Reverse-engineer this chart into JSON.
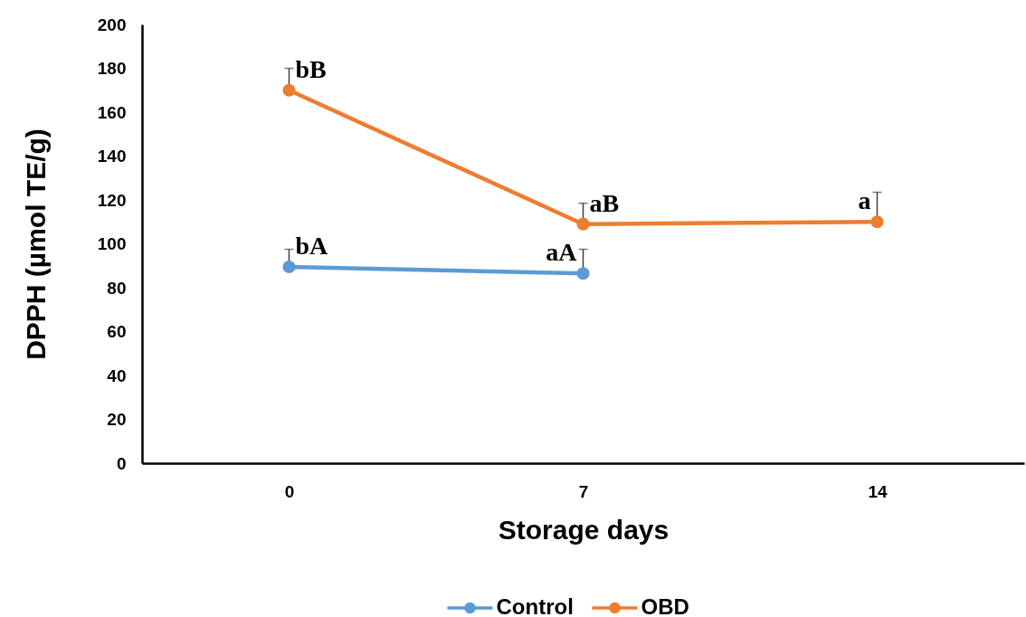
{
  "chart_data": {
    "type": "line",
    "xlabel": "Storage days",
    "ylabel": "DPPH (µmol TE/g)",
    "categories": [
      "0",
      "7",
      "14"
    ],
    "series": [
      {
        "name": "Control",
        "color": "#5b9bd5",
        "values": [
          89.5,
          86.5,
          null
        ],
        "errors": [
          [
            89.5,
            97.5
          ],
          [
            86.5,
            97.5
          ],
          null
        ]
      },
      {
        "name": "OBD",
        "color": "#ed7d31",
        "values": [
          170,
          109,
          110
        ],
        "errors": [
          [
            170,
            180
          ],
          [
            109,
            118.5
          ],
          [
            110,
            123.5
          ]
        ]
      }
    ],
    "ylim": [
      0,
      200
    ],
    "yticks": [
      0,
      20,
      40,
      60,
      80,
      100,
      120,
      140,
      160,
      180,
      200
    ],
    "grid": false,
    "legend": "bottom",
    "marker": "circle",
    "line_style": "solid",
    "annotations": [
      {
        "text": "bB",
        "x": "0",
        "y": 170
      },
      {
        "text": "aB",
        "x": "7",
        "y": 109
      },
      {
        "text": "a",
        "x": "14",
        "y": 110
      },
      {
        "text": "bA",
        "x": "0",
        "y": 89.5
      },
      {
        "text": "aA",
        "x": "7",
        "y": 86.5
      }
    ]
  }
}
